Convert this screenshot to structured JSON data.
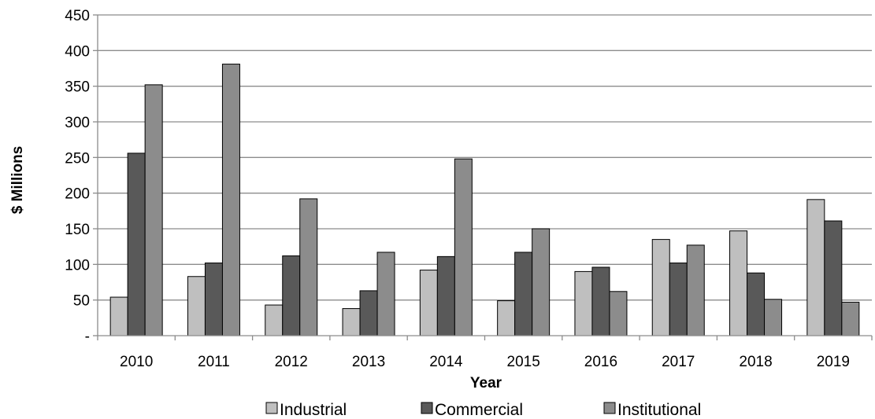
{
  "chart_data": {
    "type": "bar",
    "title": "",
    "xlabel": "Year",
    "ylabel": "$ Millions",
    "ylim": [
      0,
      450
    ],
    "yticks": [
      0,
      50,
      100,
      150,
      200,
      250,
      300,
      350,
      400,
      450
    ],
    "ytick_labels": [
      "-",
      "50",
      "100",
      "150",
      "200",
      "250",
      "300",
      "350",
      "400",
      "450"
    ],
    "grid": true,
    "legend_position": "bottom",
    "categories": [
      "2010",
      "2011",
      "2012",
      "2013",
      "2014",
      "2015",
      "2016",
      "2017",
      "2018",
      "2019"
    ],
    "series": [
      {
        "name": "Industrial",
        "color": "#bfbfbf",
        "values": [
          54,
          83,
          43,
          38,
          92,
          49,
          90,
          135,
          147,
          191
        ]
      },
      {
        "name": "Commercial",
        "color": "#595959",
        "values": [
          256,
          102,
          112,
          63,
          111,
          117,
          96,
          102,
          88,
          161
        ]
      },
      {
        "name": "Institutional",
        "color": "#8c8c8c",
        "values": [
          352,
          381,
          192,
          117,
          248,
          150,
          62,
          127,
          51,
          47
        ]
      }
    ]
  }
}
